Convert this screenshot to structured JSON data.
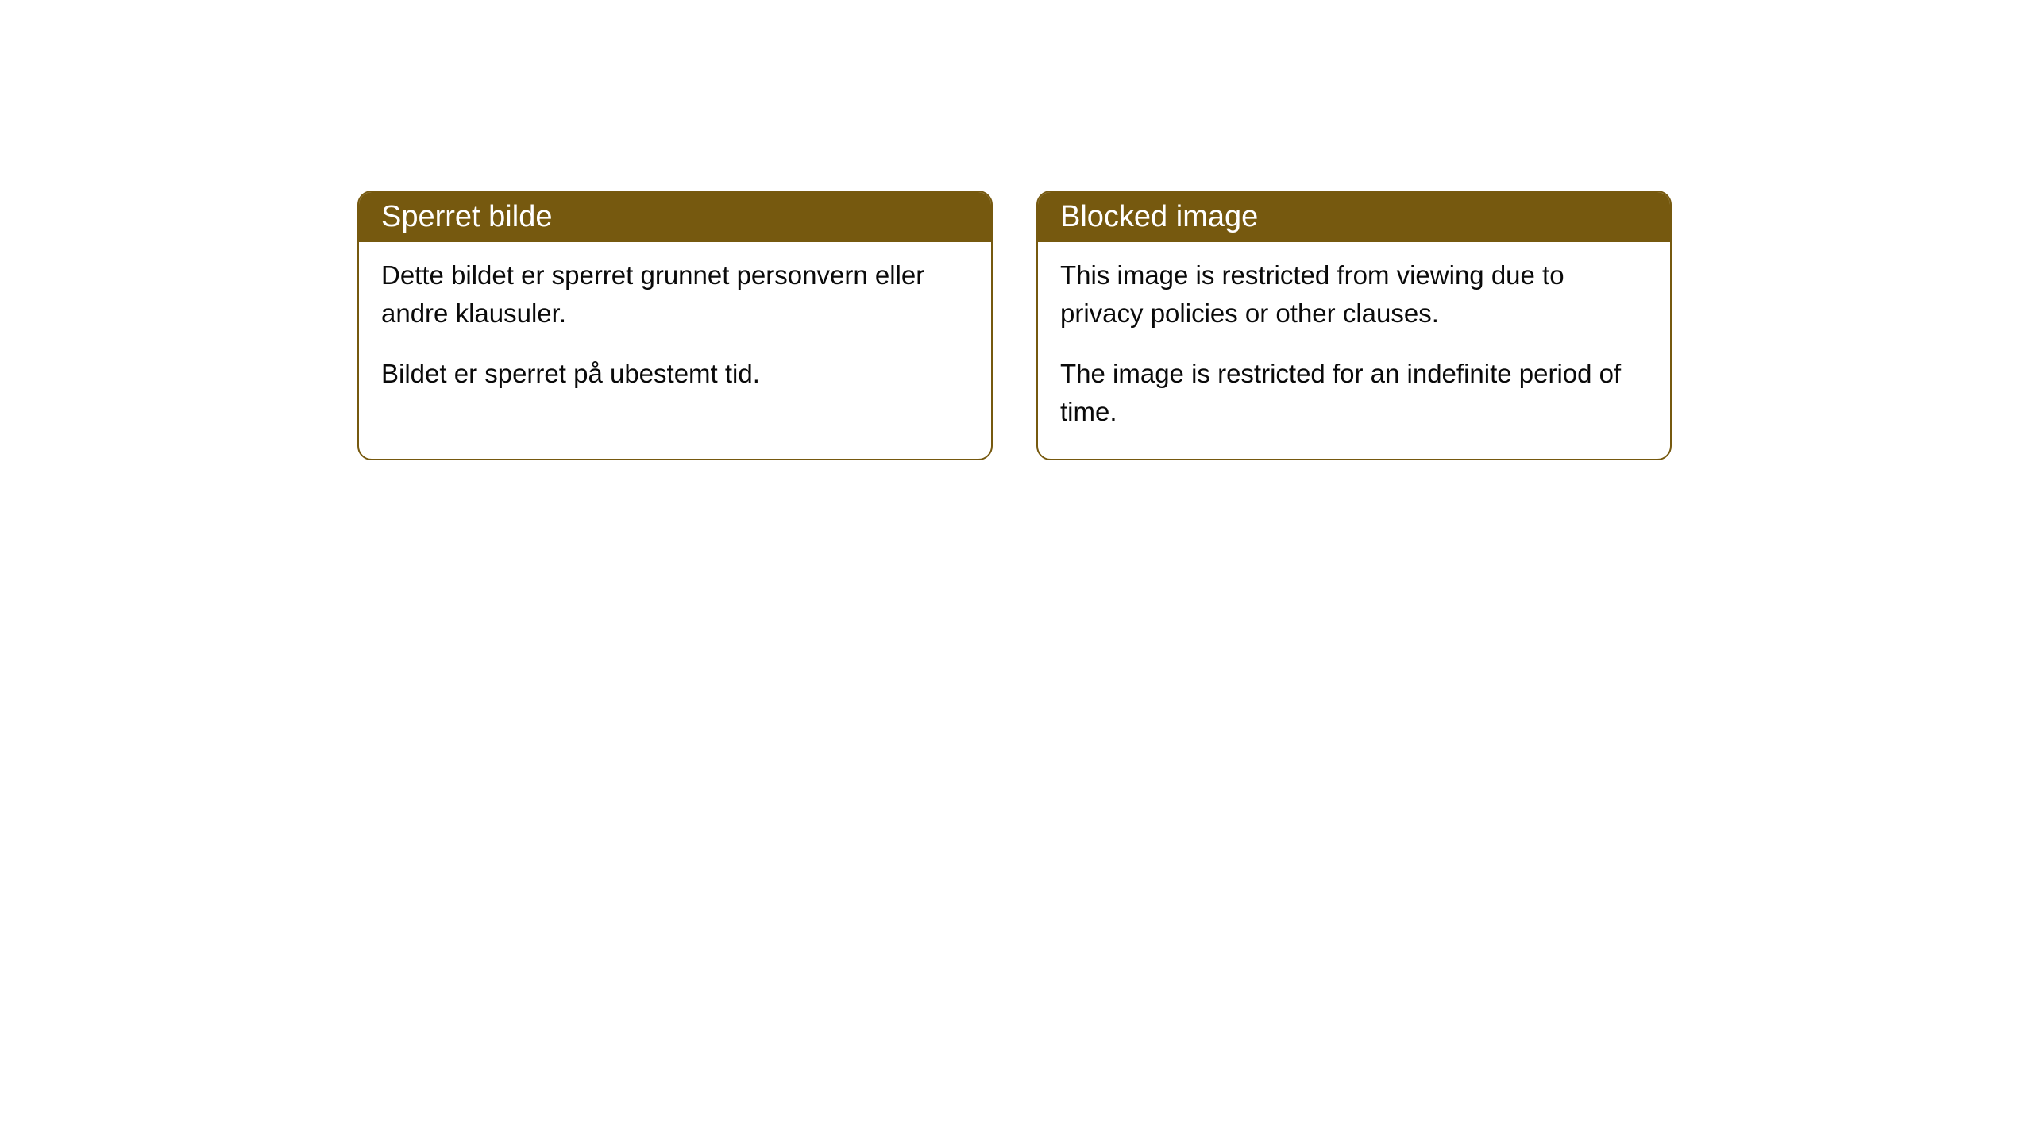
{
  "cards": [
    {
      "header": "Sperret bilde",
      "paragraph1": "Dette bildet er sperret grunnet personvern eller andre klausuler.",
      "paragraph2": "Bildet er sperret på ubestemt tid."
    },
    {
      "header": "Blocked image",
      "paragraph1": "This image is restricted from viewing due to privacy policies or other clauses.",
      "paragraph2": "The image is restricted for an indefinite period of time."
    }
  ],
  "styling": {
    "header_bg_color": "#76590f",
    "header_text_color": "#ffffff",
    "border_color": "#76590f",
    "body_text_color": "#0a0a0a",
    "card_bg_color": "#ffffff",
    "page_bg_color": "#ffffff",
    "border_radius": 18,
    "header_fontsize": 38,
    "body_fontsize": 33
  }
}
